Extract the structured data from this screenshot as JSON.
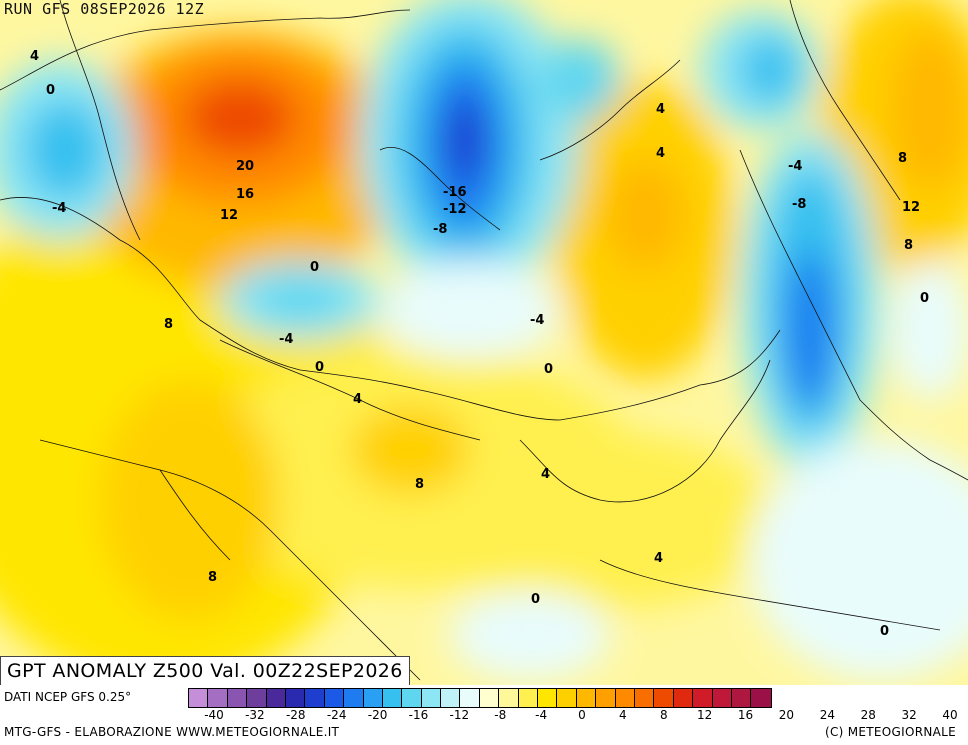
{
  "header": {
    "run_label": "RUN GFS 08SEP2026 12Z"
  },
  "title": {
    "text": "GPT ANOMALY Z500 Val. 00Z22SEP2026"
  },
  "footer": {
    "data_source": "DATI NCEP GFS 0.25°",
    "credits_left": "MTG-GFS - ELABORAZIONE WWW.METEOGIORNALE.IT",
    "credits_right": "(C) METEOGIORNALE"
  },
  "legend": {
    "tick_labels": [
      "-40",
      "-32",
      "-28",
      "-24",
      "-20",
      "-16",
      "-12",
      "-8",
      "-4",
      "0",
      "4",
      "8",
      "12",
      "16",
      "20",
      "24",
      "28",
      "32",
      "40"
    ],
    "colors": [
      "#c48fd8",
      "#a46ec2",
      "#8a55b0",
      "#6e3e9c",
      "#4a2a9a",
      "#2a2ab0",
      "#1e3ed0",
      "#1a5ae6",
      "#1f7cf0",
      "#2aa0f4",
      "#35c0f0",
      "#5ed6f0",
      "#8ce6f4",
      "#bff2f8",
      "#e8fcfc",
      "#ffffd0",
      "#fff89a",
      "#fff050",
      "#ffe600",
      "#ffd000",
      "#ffb800",
      "#ffa000",
      "#ff8a00",
      "#f86e00",
      "#ee4a00",
      "#e02a10",
      "#d01c28",
      "#c01838",
      "#ae1840",
      "#9c1048"
    ]
  },
  "contour_labels": [
    "4",
    "0",
    "20",
    "16",
    "12",
    "-4",
    "8",
    "0",
    "-4",
    "0",
    "4",
    "8",
    "-16",
    "-12",
    "-8",
    "-4",
    "0",
    "4",
    "8",
    "4",
    "4",
    "8",
    "12",
    "8",
    "4",
    "-4",
    "-8",
    "0",
    "4",
    "0",
    "0"
  ]
}
